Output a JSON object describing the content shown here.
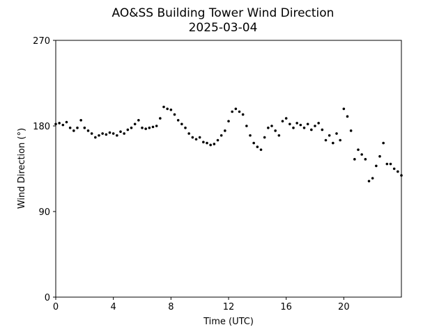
{
  "chart_data": {
    "type": "scatter",
    "title": "AO&SS Building Tower Wind Direction",
    "subtitle": "2025-03-04",
    "x_label": "Time (UTC)",
    "y_label": "Wind Direction (°)",
    "color": "#000000",
    "xlim": [
      0,
      24
    ],
    "xticks": [
      0,
      4,
      8,
      12,
      16,
      20
    ],
    "ylim": [
      0,
      270
    ],
    "yticks": [
      0,
      90,
      180,
      270
    ],
    "x": [
      0,
      0.25,
      0.5,
      0.75,
      1,
      1.25,
      1.5,
      1.75,
      2,
      2.25,
      2.5,
      2.75,
      3,
      3.25,
      3.5,
      3.75,
      4,
      4.25,
      4.5,
      4.75,
      5,
      5.25,
      5.5,
      5.75,
      6,
      6.25,
      6.5,
      6.75,
      7,
      7.25,
      7.5,
      7.75,
      8,
      8.25,
      8.5,
      8.75,
      9,
      9.25,
      9.5,
      9.75,
      10,
      10.25,
      10.5,
      10.75,
      11,
      11.25,
      11.5,
      11.75,
      12,
      12.25,
      12.5,
      12.75,
      13,
      13.25,
      13.5,
      13.75,
      14,
      14.25,
      14.5,
      14.75,
      15,
      15.25,
      15.5,
      15.75,
      16,
      16.25,
      16.5,
      16.75,
      17,
      17.25,
      17.5,
      17.75,
      18,
      18.25,
      18.5,
      18.75,
      19,
      19.25,
      19.5,
      19.75,
      20,
      20.25,
      20.5,
      20.75,
      21,
      21.25,
      21.5,
      21.75,
      22,
      22.25,
      22.5,
      22.75,
      23,
      23.25,
      23.5,
      23.75,
      24
    ],
    "values": [
      182,
      183,
      181,
      184,
      178,
      175,
      178,
      186,
      178,
      175,
      172,
      168,
      170,
      172,
      171,
      173,
      172,
      170,
      174,
      172,
      176,
      178,
      182,
      186,
      178,
      177,
      178,
      179,
      180,
      188,
      200,
      198,
      197,
      192,
      186,
      182,
      178,
      172,
      168,
      166,
      168,
      163,
      162,
      160,
      161,
      165,
      170,
      175,
      185,
      195,
      198,
      195,
      192,
      180,
      170,
      162,
      158,
      155,
      168,
      178,
      180,
      175,
      170,
      185,
      188,
      182,
      178,
      183,
      181,
      178,
      182,
      176,
      180,
      183,
      176,
      165,
      170,
      162,
      172,
      165,
      198,
      190,
      175,
      145,
      155,
      150,
      145,
      122,
      125,
      138,
      148,
      162,
      140,
      140,
      135,
      132,
      128
    ]
  }
}
